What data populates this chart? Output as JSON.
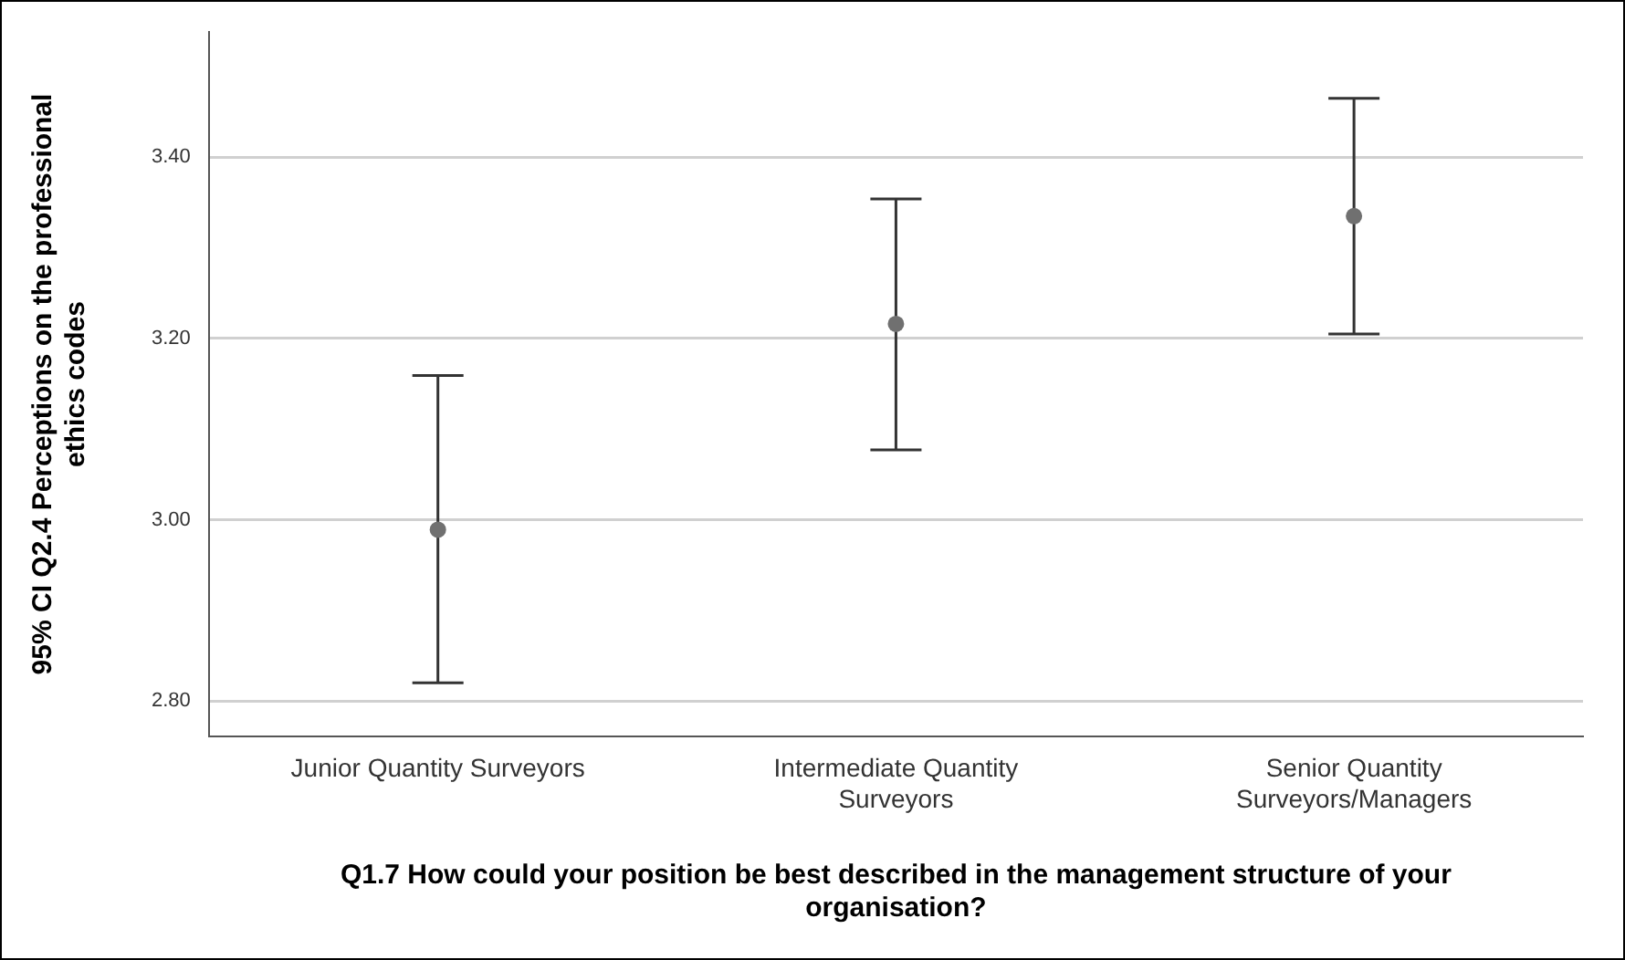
{
  "chart_data": {
    "type": "scatter",
    "xlabel": "Q1.7 How could your position be best described in the management structure of your organisation?",
    "ylabel": "95% CI Q2.4 Perceptions on the professional ethics codes",
    "categories": [
      "Junior Quantity Surveyors",
      "Intermediate Quantity Surveyors",
      "Senior Quantity Surveyors/Managers"
    ],
    "series": [
      {
        "color": "#707070",
        "values": [
          2.989,
          3.216,
          3.335
        ],
        "errors": [
          [
            2.82,
            3.159
          ],
          [
            3.077,
            3.354
          ],
          [
            3.205,
            3.465
          ]
        ]
      }
    ],
    "ylim": [
      2.761,
      3.538
    ],
    "yticks": [
      {
        "value": 2.8,
        "label": "2.80"
      },
      {
        "value": 3.0,
        "label": "3.00"
      },
      {
        "value": 3.2,
        "label": "3.20"
      },
      {
        "value": 3.4,
        "label": "3.40"
      }
    ],
    "grid": "y",
    "marker": "circle",
    "legend": false
  }
}
